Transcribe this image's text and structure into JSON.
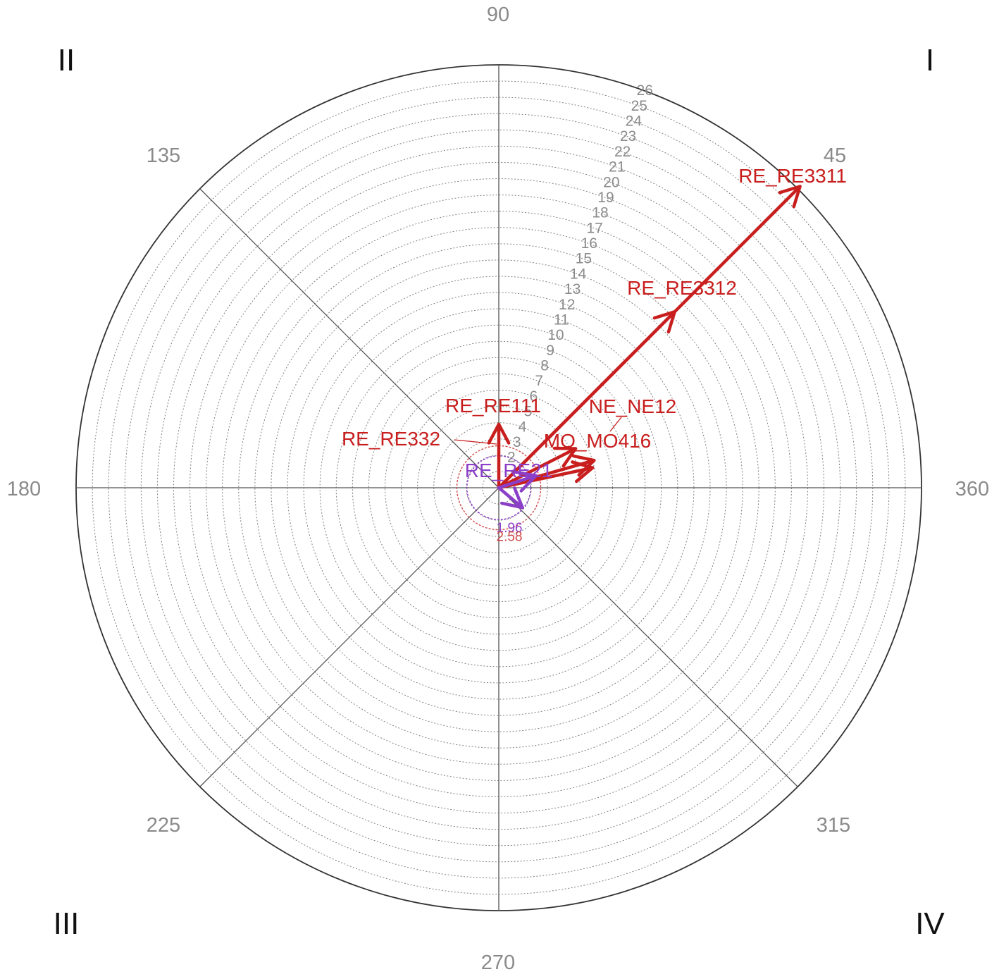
{
  "chart_data": {
    "type": "polar-vector",
    "angle_labels": [
      "45",
      "90",
      "135",
      "180",
      "225",
      "270",
      "315",
      "360"
    ],
    "quadrant_labels": [
      "I",
      "II",
      "III",
      "IV"
    ],
    "radius_max": 26,
    "ring_labels": [
      "2",
      "3",
      "4",
      "5",
      "6",
      "7",
      "8",
      "9",
      "10",
      "11",
      "12",
      "13",
      "14",
      "15",
      "16",
      "17",
      "18",
      "19",
      "20",
      "21",
      "22",
      "23",
      "24",
      "25",
      "26"
    ],
    "ring_label_angle": 70,
    "significance_circles": [
      {
        "label": "1.96",
        "radius": 1.96,
        "color": "#8b3fc9"
      },
      {
        "label": "2.58",
        "radius": 2.58,
        "color": "#d04a4a"
      }
    ],
    "vectors": [
      {
        "label": "RE_RE3311",
        "length": 26.2,
        "angle": 45,
        "color": "#c81e1e"
      },
      {
        "label": "RE_RE3312",
        "length": 15.3,
        "angle": 45,
        "color": "#c81e1e"
      },
      {
        "label": "RE_RE111",
        "length": 3.9,
        "angle": 90,
        "color": "#c81e1e"
      },
      {
        "label": "RE_RE332",
        "length": 5.9,
        "angle": 12,
        "color": "#c81e1e"
      },
      {
        "label": "MO_MO416",
        "length": 6.1,
        "angle": 16,
        "color": "#c81e1e"
      },
      {
        "label": "NE_NE12",
        "length": 5.3,
        "angle": 27,
        "color": "#c81e1e"
      },
      {
        "label": "RE_RE21",
        "length": 2.4,
        "angle": 18,
        "color": "#8b3fc9"
      },
      {
        "label": "",
        "length": 1.9,
        "angle": -40,
        "color": "#8b3fc9"
      }
    ],
    "grid": true
  }
}
